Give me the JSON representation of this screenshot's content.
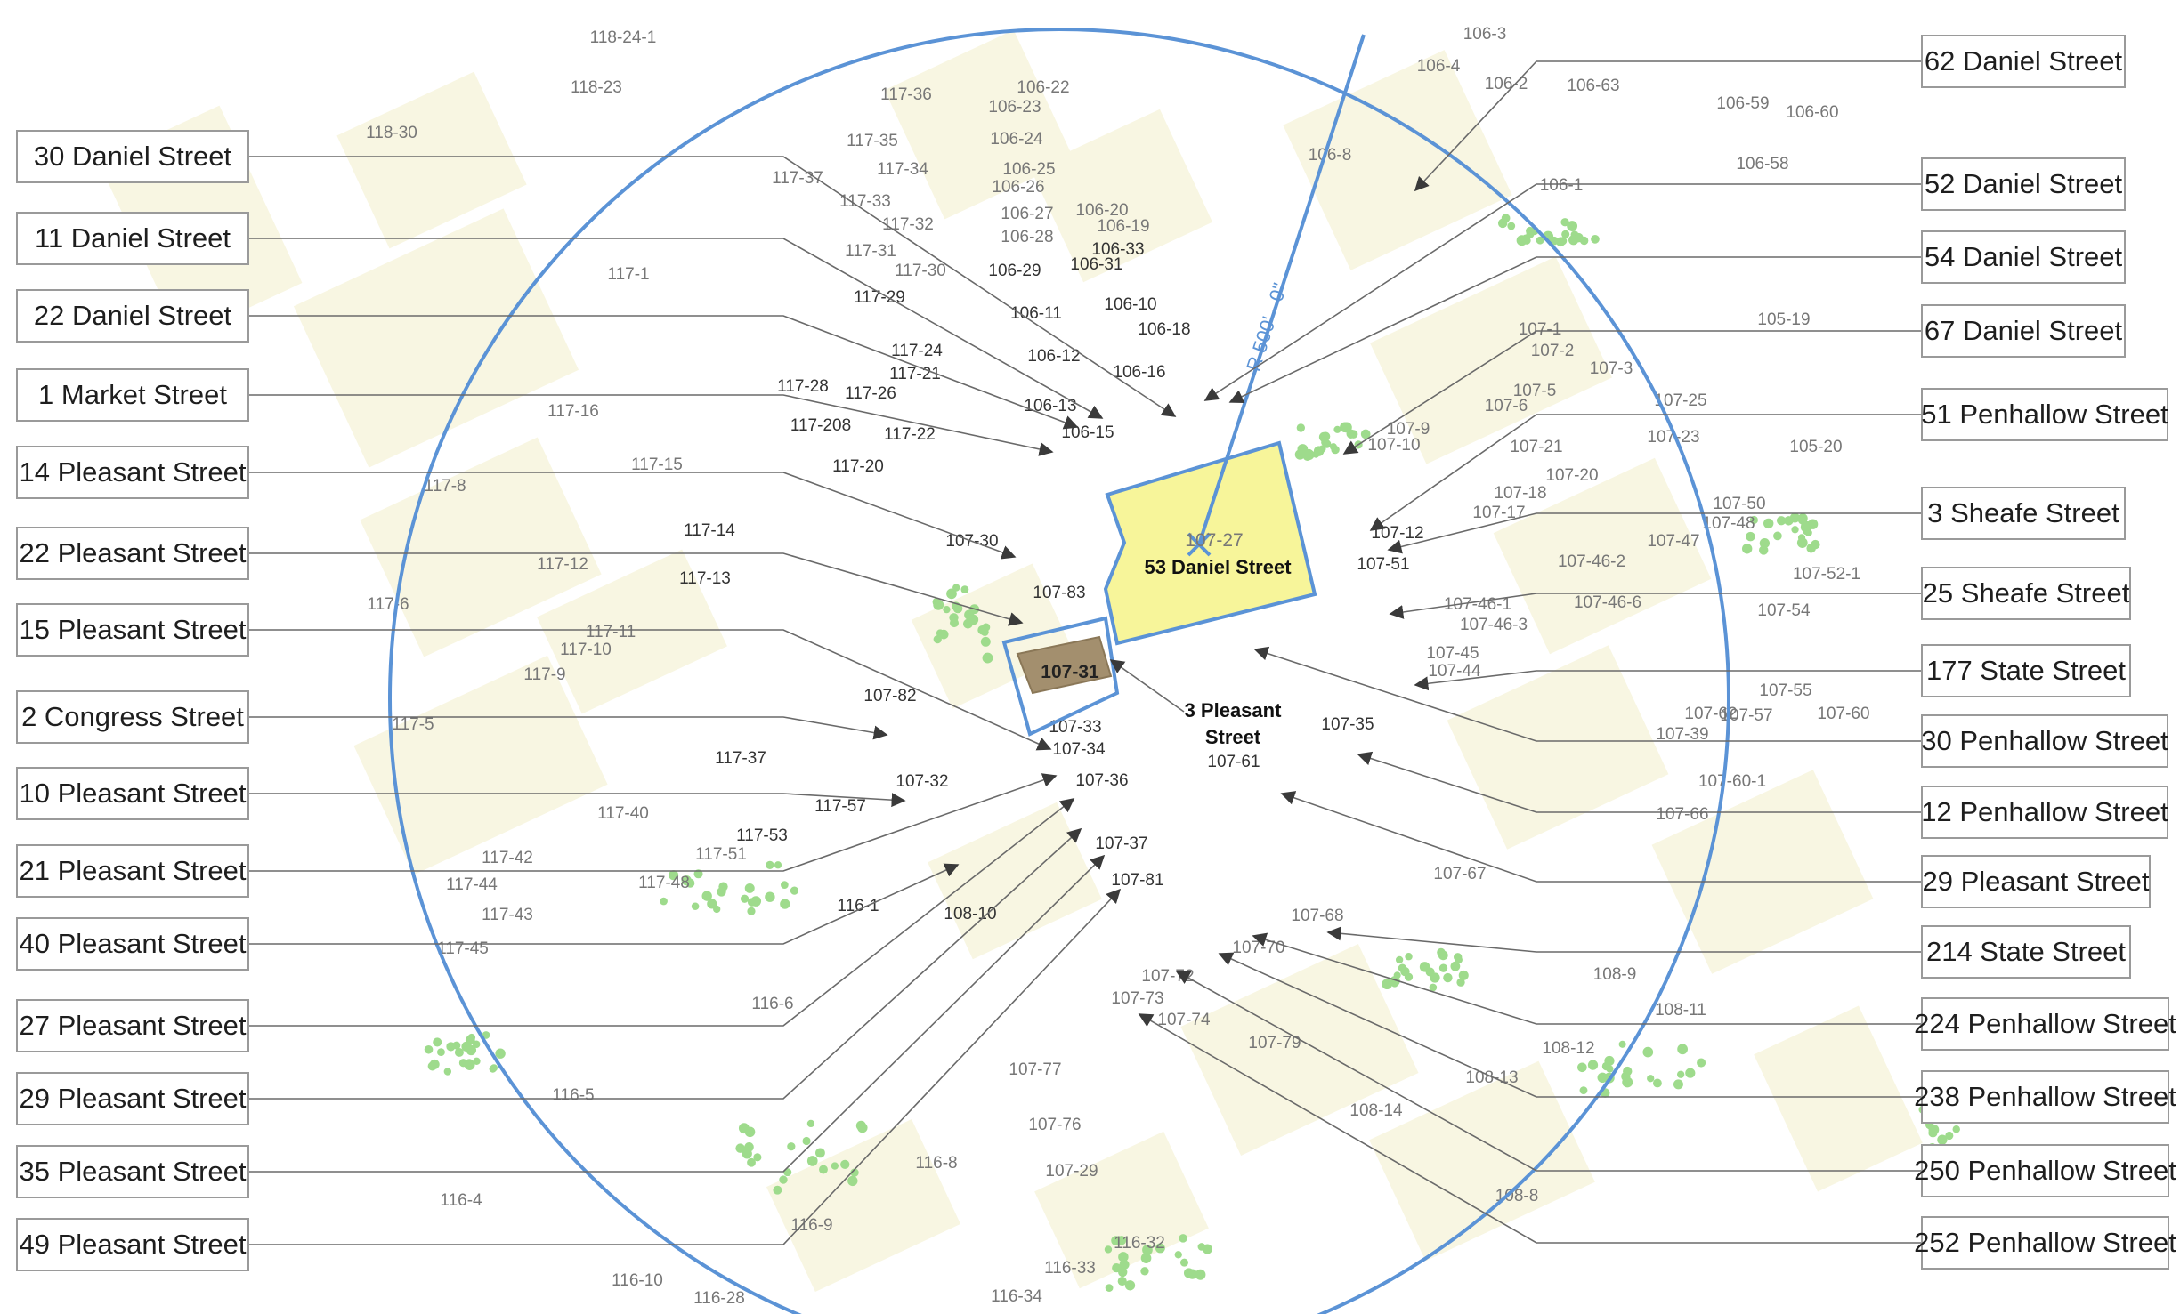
{
  "radius_label": "R 500' - 0\"",
  "subject": {
    "parcel": "107-27",
    "name": "53 Daniel Street"
  },
  "secondary": {
    "parcel": "107-31",
    "name_line1": "3 Pleasant",
    "name_line2": "Street"
  },
  "left_addresses": [
    "30 Daniel Street",
    "11 Daniel Street",
    "22 Daniel Street",
    "1 Market Street",
    "14  Pleasant Street",
    "22  Pleasant Street",
    "15  Pleasant Street",
    "2 Congress Street",
    "10  Pleasant Street",
    "21  Pleasant Street",
    "40  Pleasant Street",
    "27  Pleasant Street",
    "29  Pleasant Street",
    "35  Pleasant Street",
    "49  Pleasant Street"
  ],
  "right_addresses": [
    "62 Daniel Street",
    "52 Daniel Street",
    "54 Daniel Street",
    "67 Daniel Street",
    "51 Penhallow Street",
    "3 Sheafe Street",
    "25 Sheafe Street",
    "177 State Street",
    "30 Penhallow Street",
    "12 Penhallow Street",
    "29 Pleasant Street",
    "214 State Street",
    "224 Penhallow Street",
    "238 Penhallow Street",
    "250 Penhallow Street",
    "252 Penhallow Street"
  ],
  "parcel_labels": [
    "118-24-1",
    "118-23",
    "118-30",
    "117-36",
    "117-35",
    "117-37",
    "117-34",
    "117-33",
    "117-32",
    "117-31",
    "117-30",
    "117-29",
    "117-24",
    "117-21",
    "117-26",
    "117-28",
    "117-208",
    "117-22",
    "117-20",
    "117-1",
    "117-16",
    "117-15",
    "117-8",
    "117-14",
    "117-13",
    "117-12",
    "117-6",
    "117-11",
    "117-10",
    "117-9",
    "117-5",
    "117-37",
    "117-40",
    "117-57",
    "117-53",
    "117-51",
    "117-42",
    "117-44",
    "117-48",
    "117-43",
    "117-45",
    "116-1",
    "116-6",
    "116-5",
    "116-4",
    "116-9",
    "116-8",
    "116-10",
    "116-28",
    "116-33",
    "116-34",
    "116-32",
    "106-22",
    "106-23",
    "106-24",
    "106-25",
    "106-26",
    "106-27",
    "106-28",
    "106-20",
    "106-19",
    "106-33",
    "106-29",
    "106-31",
    "106-11",
    "106-10",
    "106-18",
    "106-12",
    "106-16",
    "106-13",
    "106-15",
    "106-3",
    "106-4",
    "106-2",
    "106-63",
    "106-59",
    "106-60",
    "106-8",
    "106-1",
    "106-58",
    "105-19",
    "105-20",
    "107-1",
    "107-2",
    "107-3",
    "107-5",
    "107-6",
    "107-9",
    "107-10",
    "107-25",
    "107-21",
    "107-23",
    "107-20",
    "107-18",
    "107-17",
    "107-12",
    "107-51",
    "107-50",
    "107-48",
    "107-47",
    "107-46-2",
    "107-46-1",
    "107-46-6",
    "107-46-3",
    "107-52-1",
    "107-54",
    "107-45",
    "107-44",
    "107-55",
    "107-57",
    "107-62",
    "107-60",
    "107-39",
    "107-35",
    "107-61",
    "107-60-1",
    "107-66",
    "107-67",
    "107-68",
    "107-70",
    "107-72",
    "107-73",
    "107-74",
    "107-79",
    "107-77",
    "107-76",
    "107-29",
    "107-30",
    "107-83",
    "107-82",
    "107-32",
    "107-33",
    "107-34",
    "107-36",
    "107-37",
    "107-81",
    "108-10",
    "108-9",
    "108-11",
    "108-12",
    "108-13",
    "108-14",
    "108-8"
  ],
  "colors": {
    "circle": "#5b93d6",
    "subject_fill": "#f7f59a",
    "secondary_fill": "#a38f6e",
    "building": "#f8f6e2",
    "tree": "#9edb8c",
    "leader": "#6a6a6a"
  }
}
